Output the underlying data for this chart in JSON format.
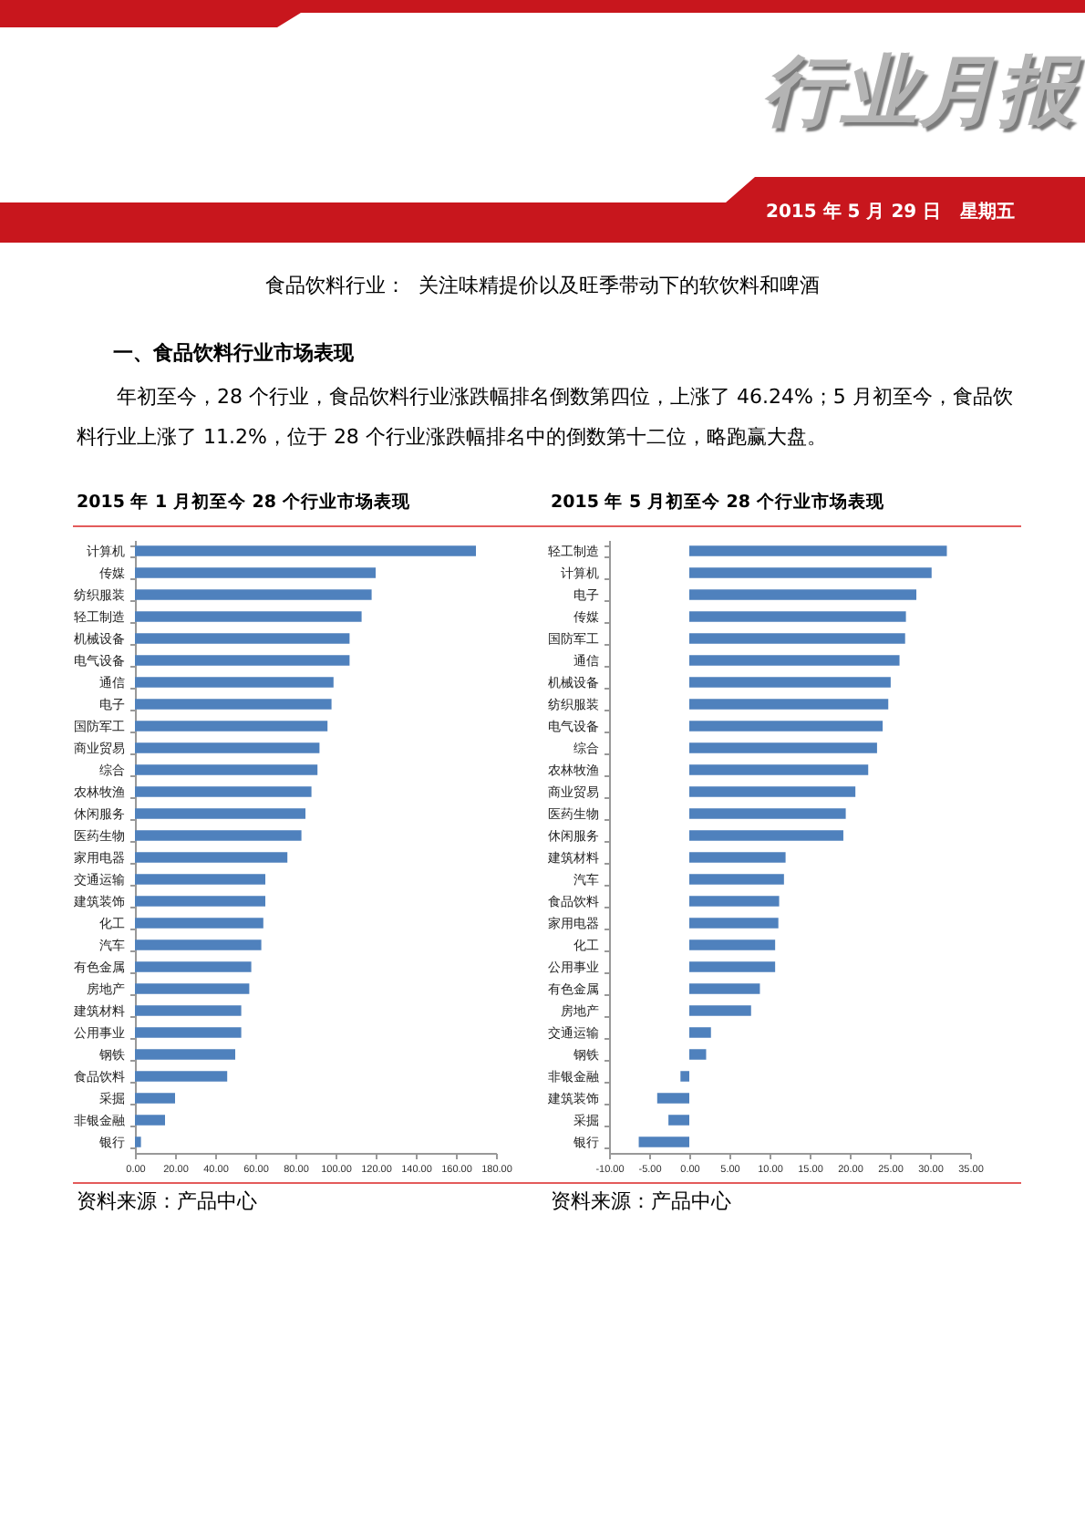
{
  "chart_data": [
    {
      "type": "other",
      "title": "食品饮料行业：  关注味精提价以及旺季带动下的软饮料和啤酒",
      "annotations": [
        "行业月报",
        "2015 年 5 月 29 日   星期五",
        "一、食品饮料行业市场表现",
        "年初至今，28 个行业，食品饮料行业涨跌幅排名倒数第四位，上涨了 46.24%；5 月初至今，食品饮料行业上涨了 11.2%，位于 28 个行业涨跌幅排名中的倒数第十二位，略跑赢大盘。"
      ]
    },
    {
      "type": "bar",
      "orientation": "horizontal",
      "title": "2015 年 1 月初至今 28 个行业市场表现",
      "categories": [
        "计算机",
        "传媒",
        "纺织服装",
        "轻工制造",
        "机械设备",
        "电气设备",
        "通信",
        "电子",
        "国防军工",
        "商业贸易",
        "综合",
        "农林牧渔",
        "休闲服务",
        "医药生物",
        "家用电器",
        "交通运输",
        "建筑装饰",
        "化工",
        "汽车",
        "有色金属",
        "房地产",
        "建筑材料",
        "公用事业",
        "钢铁",
        "食品饮料",
        "采掘",
        "非银金融",
        "银行"
      ],
      "values": [
        170,
        120,
        118,
        113,
        107,
        107,
        99,
        98,
        96,
        92,
        91,
        88,
        85,
        83,
        76,
        65,
        65,
        64,
        63,
        58,
        57,
        53,
        53,
        50,
        46,
        20,
        15,
        3
      ],
      "color": "#4f81bd",
      "xlim": [
        0,
        180
      ],
      "xticks": [
        {
          "value": 0,
          "label": "0.00"
        },
        {
          "value": 20,
          "label": "20.00"
        },
        {
          "value": 40,
          "label": "40.00"
        },
        {
          "value": 60,
          "label": "60.00"
        },
        {
          "value": 80,
          "label": "80.00"
        },
        {
          "value": 100,
          "label": "100.00"
        },
        {
          "value": 120,
          "label": "120.00"
        },
        {
          "value": 140,
          "label": "140.00"
        },
        {
          "value": 160,
          "label": "160.00"
        },
        {
          "value": 180,
          "label": "180.00"
        }
      ],
      "annotations": [
        "资料来源：产品中心"
      ]
    },
    {
      "type": "bar",
      "orientation": "horizontal",
      "title": "2015 年 5 月初至今 28 个行业市场表现",
      "categories": [
        "轻工制造",
        "计算机",
        "电子",
        "传媒",
        "国防军工",
        "通信",
        "机械设备",
        "纺织服装",
        "电气设备",
        "综合",
        "农林牧渔",
        "商业贸易",
        "医药生物",
        "休闲服务",
        "建筑材料",
        "汽车",
        "食品饮料",
        "家用电器",
        "化工",
        "公用事业",
        "有色金属",
        "房地产",
        "交通运输",
        "钢铁",
        "非银金融",
        "建筑装饰",
        "采掘",
        "银行"
      ],
      "values": [
        32.1,
        30.2,
        28.3,
        27.0,
        26.9,
        26.2,
        25.1,
        24.8,
        24.1,
        23.4,
        22.3,
        20.7,
        19.5,
        19.2,
        12.0,
        11.8,
        11.2,
        11.1,
        10.7,
        10.7,
        8.8,
        7.7,
        2.7,
        2.1,
        -1.1,
        -4.0,
        -2.6,
        -6.3
      ],
      "color": "#4f81bd",
      "xlim": [
        -10,
        35
      ],
      "xticks": [
        {
          "value": -10,
          "label": "-10.00"
        },
        {
          "value": -5,
          "label": "-5.00"
        },
        {
          "value": 0,
          "label": "0.00"
        },
        {
          "value": 5,
          "label": "5.00"
        },
        {
          "value": 10,
          "label": "10.00"
        },
        {
          "value": 15,
          "label": "15.00"
        },
        {
          "value": 20,
          "label": "20.00"
        },
        {
          "value": 25,
          "label": "25.00"
        },
        {
          "value": 30,
          "label": "30.00"
        },
        {
          "value": 35,
          "label": "35.00"
        }
      ],
      "annotations": [
        "资料来源：产品中心"
      ]
    }
  ]
}
